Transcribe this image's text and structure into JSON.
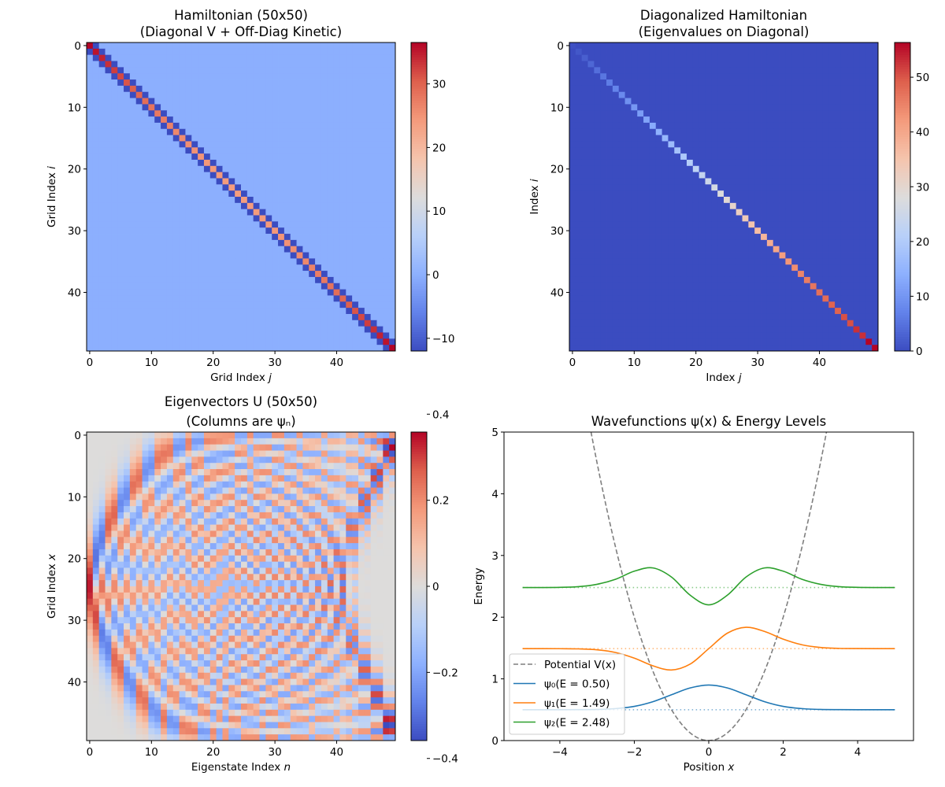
{
  "chart_data": [
    {
      "type": "heatmap",
      "title": [
        "Hamiltonian (50x50)",
        "(Diagonal V + Off-Diag Kinetic)"
      ],
      "xlabel": {
        "text": "Grid Index ",
        "math": "j"
      },
      "ylabel": {
        "text": "Grid Index ",
        "math": "i"
      },
      "size": 50,
      "diagonal_half": [
        36.51,
        35.51,
        34.55,
        33.64,
        32.76,
        31.93,
        31.14,
        30.39,
        29.68,
        29.01,
        28.39,
        27.81,
        27.26,
        26.76,
        26.31,
        25.89,
        25.52,
        25.18,
        24.89,
        24.64,
        24.43,
        24.27,
        24.14,
        24.06,
        24.02
      ],
      "diagonal_note_symmetric": true,
      "off_diagonal": -12.0,
      "colormap": "coolwarm",
      "xticks": [
        0,
        10,
        20,
        30,
        40
      ],
      "yticks": [
        0,
        10,
        20,
        30,
        40
      ],
      "colorbar_ticks": [
        -10,
        0,
        10,
        20,
        30
      ]
    },
    {
      "type": "heatmap",
      "title": [
        "Diagonalized Hamiltonian",
        "(Eigenvalues on Diagonal)"
      ],
      "xlabel": {
        "text": "Index ",
        "math": "j"
      },
      "ylabel": {
        "text": "Index ",
        "math": "i"
      },
      "size": 50,
      "colormap": "coolwarm",
      "xticks": [
        0,
        10,
        20,
        30,
        40
      ],
      "yticks": [
        0,
        10,
        20,
        30,
        40
      ],
      "colorbar_ticks": [
        0,
        10,
        20,
        30,
        40,
        50
      ]
    },
    {
      "type": "heatmap",
      "title": [
        "Eigenvectors U (50x50)",
        "(Columns are ψₙ)"
      ],
      "xlabel": {
        "text": "Eigenstate Index ",
        "math": "n"
      },
      "ylabel": {
        "text": "Grid Index ",
        "math": "x"
      },
      "size": 50,
      "colormap": "coolwarm",
      "xticks": [
        0,
        10,
        20,
        30,
        40
      ],
      "yticks": [
        0,
        10,
        20,
        30,
        40
      ],
      "colorbar_ticks": [
        -0.4,
        -0.2,
        0.0,
        0.2,
        0.4
      ]
    },
    {
      "type": "line",
      "title": "Wavefunctions ψ(x) & Energy Levels",
      "xlabel": {
        "text": "Position ",
        "math": "x"
      },
      "ylabel": {
        "text": "Energy",
        "math": ""
      },
      "xlim": [
        -5.5,
        5.5
      ],
      "ylim": [
        0,
        5
      ],
      "xticks": [
        -4,
        -2,
        0,
        2,
        4
      ],
      "yticks": [
        0,
        1,
        2,
        3,
        4,
        5
      ],
      "grid": false,
      "legend": "lower-left",
      "x": [
        -5,
        -4.5,
        -4,
        -3.5,
        -3,
        -2.5,
        -2,
        -1.5,
        -1,
        -0.5,
        0,
        0.5,
        1,
        1.5,
        2,
        2.5,
        3,
        3.5,
        4,
        4.5,
        5
      ],
      "potential": {
        "name": "Potential V(x)",
        "color": "#7f7f7f",
        "style": "dashed",
        "values": [
          12.5,
          10.125,
          8,
          6.125,
          4.5,
          3.125,
          2,
          1.125,
          0.5,
          0.125,
          0,
          0.125,
          0.5,
          1.125,
          2,
          3.125,
          4.5,
          6.125,
          8,
          10.125,
          12.5
        ]
      },
      "series": [
        {
          "name": "ψ₀(E = 0.50)",
          "energy": 0.5,
          "color": "#1f77b4",
          "values": [
            0.5,
            0.5,
            0.5,
            0.501,
            0.504,
            0.518,
            0.554,
            0.63,
            0.743,
            0.853,
            0.9,
            0.853,
            0.743,
            0.63,
            0.554,
            0.518,
            0.504,
            0.501,
            0.5,
            0.5,
            0.5
          ]
        },
        {
          "name": "ψ₁(E = 1.49)",
          "energy": 1.49,
          "color": "#ff7f0e",
          "values": [
            1.49,
            1.49,
            1.489,
            1.486,
            1.471,
            1.427,
            1.336,
            1.212,
            1.144,
            1.239,
            1.49,
            1.741,
            1.836,
            1.768,
            1.644,
            1.553,
            1.509,
            1.494,
            1.491,
            1.49,
            1.49
          ]
        },
        {
          "name": "ψ₂(E = 2.48)",
          "energy": 2.48,
          "color": "#2ca02c",
          "values": [
            2.48,
            2.48,
            2.483,
            2.494,
            2.533,
            2.615,
            2.745,
            2.798,
            2.65,
            2.356,
            2.2,
            2.356,
            2.65,
            2.798,
            2.745,
            2.615,
            2.533,
            2.494,
            2.483,
            2.48,
            2.48
          ]
        }
      ]
    }
  ]
}
